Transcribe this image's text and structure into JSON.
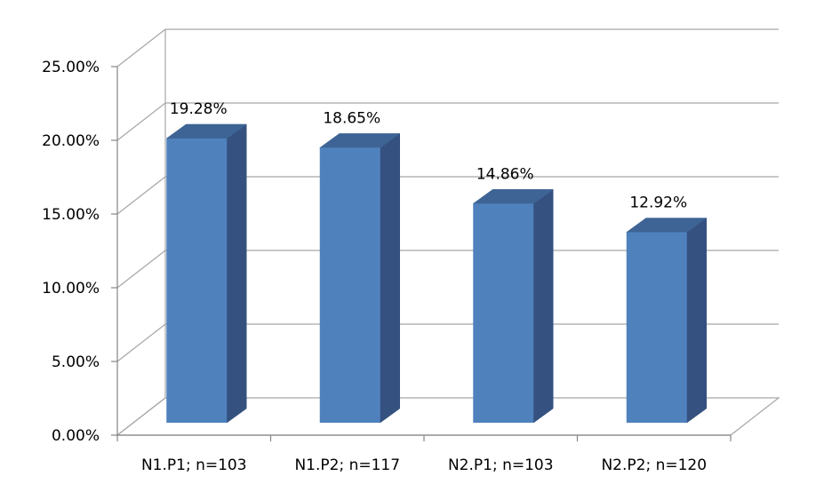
{
  "chart_data": {
    "type": "bar",
    "subtype": "3d-column",
    "categories": [
      "N1.P1; n=103",
      "N1.P2; n=117",
      "N2.P1; n=103",
      "N2.P2; n=120"
    ],
    "values": [
      19.28,
      18.65,
      14.86,
      12.92
    ],
    "data_labels": [
      "19.28%",
      "18.65%",
      "14.86%",
      "12.92%"
    ],
    "y_ticks": [
      0,
      5,
      10,
      15,
      20,
      25
    ],
    "y_tick_labels": [
      "0.00%",
      "5.00%",
      "10.00%",
      "15.00%",
      "20.00%",
      "25.00%"
    ],
    "ylim": [
      0,
      25
    ],
    "grid": true,
    "legend": "none",
    "colors": {
      "bar_front": "#4f81bd",
      "bar_side": "#345180",
      "bar_top": "#3d6494",
      "grid": "#a6a6a6",
      "axis": "#868686"
    }
  }
}
